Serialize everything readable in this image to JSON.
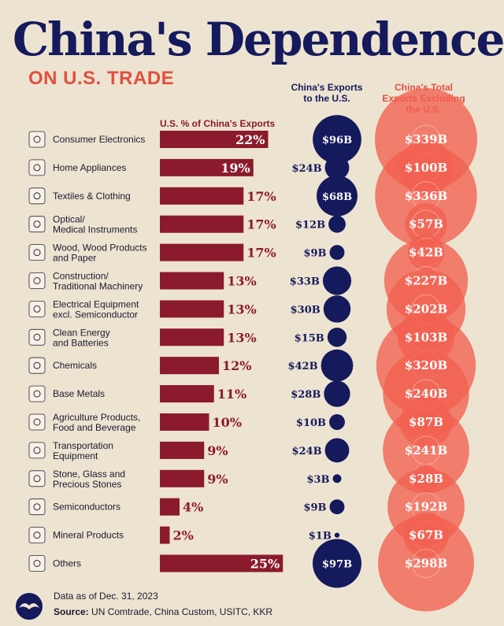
{
  "header": {
    "title": "China's Dependence",
    "subtitle": "ON U.S. TRADE",
    "col_us": "China's Exports to the U.S.",
    "col_ex": "China's Total Exports Excluding the U.S.",
    "col_pct": "U.S. % of China's Exports"
  },
  "footer": {
    "date_note": "Data as of Dec. 31, 2023",
    "source_label": "Source:",
    "source_text": "UN Comtrade, China Custom, USITC, KKR"
  },
  "colors": {
    "navy": "#141a5c",
    "bar": "#8b1a2c",
    "coral": "#f2604f",
    "accent": "#e2503f",
    "background": "#ede3d1"
  },
  "chart_data": {
    "type": "bar",
    "categories": [
      "Consumer Electronics",
      "Home Appliances",
      "Textiles & Clothing",
      "Optical/\nMedical Instruments",
      "Wood, Wood Products\nand Paper",
      "Construction/\nTraditional Machinery",
      "Electrical Equipment\nexcl. Semiconductor",
      "Clean Energy\nand Batteries",
      "Chemicals",
      "Base Metals",
      "Agriculture Products,\nFood and Beverage",
      "Transportation\nEquipment",
      "Stone, Glass and\nPrecious Stones",
      "Semiconductors",
      "Mineral Products",
      "Others"
    ],
    "icons": [
      "consumer-electronics-icon",
      "home-appliances-icon",
      "clothing-icon",
      "medical-instruments-icon",
      "wood-icon",
      "machinery-icon",
      "electrical-equipment-icon",
      "battery-icon",
      "chemicals-icon",
      "base-metals-icon",
      "agriculture-icon",
      "transportation-icon",
      "stone-icon",
      "semiconductor-icon",
      "mineral-icon",
      "others-icon"
    ],
    "series": [
      {
        "name": "U.S. % of China's Exports",
        "values": [
          22,
          19,
          17,
          17,
          17,
          13,
          13,
          13,
          12,
          11,
          10,
          9,
          9,
          4,
          2,
          25
        ]
      },
      {
        "name": "China's Exports to the U.S.",
        "values": [
          96,
          24,
          68,
          12,
          9,
          33,
          30,
          15,
          42,
          28,
          10,
          24,
          3,
          9,
          1,
          97
        ]
      },
      {
        "name": "China's Total Exports Excluding the U.S.",
        "values": [
          339,
          100,
          336,
          57,
          42,
          227,
          202,
          103,
          320,
          240,
          87,
          241,
          28,
          192,
          67,
          298
        ]
      }
    ],
    "pct_labels": [
      "22%",
      "19%",
      "17%",
      "17%",
      "17%",
      "13%",
      "13%",
      "13%",
      "12%",
      "11%",
      "10%",
      "9%",
      "9%",
      "4%",
      "2%",
      "25%"
    ],
    "us_labels": [
      "$96B",
      "$24B",
      "$68B",
      "$12B",
      "$9B",
      "$33B",
      "$30B",
      "$15B",
      "$42B",
      "$28B",
      "$10B",
      "$24B",
      "$3B",
      "$9B",
      "$1B",
      "$97B"
    ],
    "ex_labels": [
      "$339B",
      "$100B",
      "$336B",
      "$57B",
      "$42B",
      "$227B",
      "$202B",
      "$103B",
      "$320B",
      "$240B",
      "$87B",
      "$241B",
      "$28B",
      "$192B",
      "$67B",
      "$298B"
    ]
  }
}
